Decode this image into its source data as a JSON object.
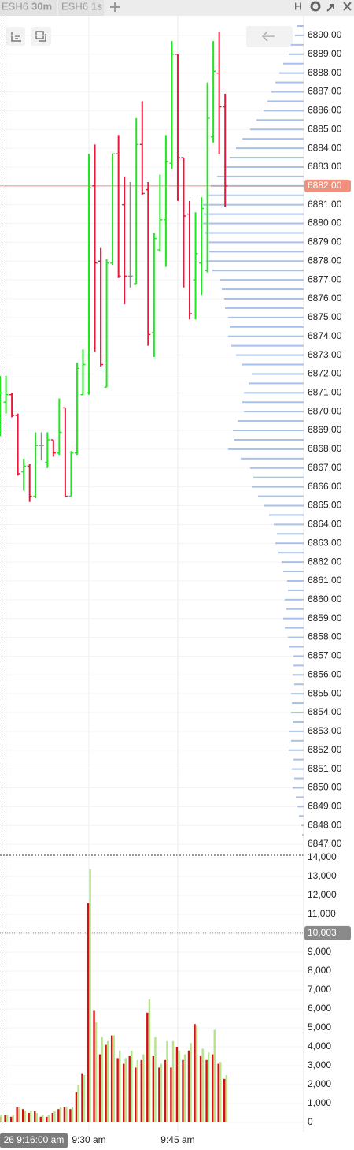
{
  "tabs": [
    {
      "symbol": "ESH6",
      "interval": "30m"
    },
    {
      "symbol": "ESH6",
      "interval": "1s"
    }
  ],
  "toolbar": {
    "hotkey": "H"
  },
  "crosshair_label": "26 9:16:00 am",
  "chart_data": [
    {
      "type": "ohlc",
      "open": [
        6869.0,
        6870.5,
        6870.9,
        6869.8,
        6866.8,
        6867.1,
        6865.5,
        6868.2,
        6867.3,
        6868.5,
        6867.8,
        6870.2,
        6865.5,
        6867.8,
        6870.9,
        6871.0,
        6882.0,
        6878.0,
        6871.3,
        6877.9,
        6883.7,
        6881.0,
        6877.2,
        6876.8,
        6884.2,
        6881.8,
        6874.2,
        6878.6,
        6880.2,
        6883.2,
        6889.0,
        6883.5,
        6880.5,
        6877.0,
        6877.9,
        6877.5,
        6884.6,
        6888.0,
        6886.2
      ],
      "high": [
        6871.9,
        6871.9,
        6871.0,
        6869.9,
        6867.5,
        6867.2,
        6868.9,
        6868.9,
        6868.9,
        6868.5,
        6870.7,
        6870.2,
        6867.9,
        6872.6,
        6873.3,
        6883.7,
        6884.2,
        6878.7,
        6878.1,
        6883.7,
        6884.7,
        6882.5,
        6882.2,
        6885.6,
        6886.5,
        6882.2,
        6879.5,
        6882.6,
        6884.7,
        6889.7,
        6889.0,
        6883.5,
        6881.2,
        6880.6,
        6881.4,
        6887.5,
        6889.7,
        6890.2,
        6886.9
      ],
      "low": [
        6868.7,
        6869.9,
        6869.7,
        6866.6,
        6865.8,
        6865.2,
        6865.4,
        6867.4,
        6867.0,
        6867.6,
        6867.7,
        6865.5,
        6865.5,
        6867.7,
        6870.9,
        6870.9,
        6873.2,
        6872.4,
        6871.3,
        6877.8,
        6877.1,
        6875.7,
        6876.6,
        6876.8,
        6881.5,
        6873.5,
        6872.9,
        6878.5,
        6877.7,
        6882.9,
        6881.2,
        6876.6,
        6874.9,
        6874.9,
        6876.2,
        6877.4,
        6884.3,
        6883.7,
        6880.9
      ],
      "close": [
        6871.0,
        6870.9,
        6869.8,
        6866.7,
        6867.1,
        6865.5,
        6868.2,
        6868.2,
        6868.5,
        6867.8,
        6868.9,
        6865.5,
        6867.8,
        6872.3,
        6872.5,
        6881.9,
        6877.9,
        6872.5,
        6877.9,
        6883.7,
        6877.2,
        6877.2,
        6877.2,
        6884.2,
        6881.6,
        6874.1,
        6879.2,
        6880.2,
        6883.3,
        6889.0,
        6883.5,
        6880.4,
        6875.2,
        6878.4,
        6880.8,
        6885.6,
        6888.1,
        6886.2,
        6882.0
      ],
      "up_color": "#22e622",
      "down_color": "#e8183c",
      "flat_color": "#8c8c8c",
      "ylim": [
        6846.5,
        6890.96
      ],
      "yticks": [
        {
          "value": 6847,
          "label": "6847.00"
        },
        {
          "value": 6848,
          "label": "6848.00"
        },
        {
          "value": 6849,
          "label": "6849.00"
        },
        {
          "value": 6850,
          "label": "6850.00"
        },
        {
          "value": 6851,
          "label": "6851.00"
        },
        {
          "value": 6852,
          "label": "6852.00"
        },
        {
          "value": 6853,
          "label": "6853.00"
        },
        {
          "value": 6854,
          "label": "6854.00"
        },
        {
          "value": 6855,
          "label": "6855.00"
        },
        {
          "value": 6856,
          "label": "6856.00"
        },
        {
          "value": 6857,
          "label": "6857.00"
        },
        {
          "value": 6858,
          "label": "6858.00"
        },
        {
          "value": 6859,
          "label": "6859.00"
        },
        {
          "value": 6860,
          "label": "6860.00"
        },
        {
          "value": 6861,
          "label": "6861.00"
        },
        {
          "value": 6862,
          "label": "6862.00"
        },
        {
          "value": 6863,
          "label": "6863.00"
        },
        {
          "value": 6864,
          "label": "6864.00"
        },
        {
          "value": 6865,
          "label": "6865.00"
        },
        {
          "value": 6866,
          "label": "6866.00"
        },
        {
          "value": 6867,
          "label": "6867.00"
        },
        {
          "value": 6868,
          "label": "6868.00"
        },
        {
          "value": 6869,
          "label": "6869.00"
        },
        {
          "value": 6870,
          "label": "6870.00"
        },
        {
          "value": 6871,
          "label": "6871.00"
        },
        {
          "value": 6872,
          "label": "6872.00"
        },
        {
          "value": 6873,
          "label": "6873.00"
        },
        {
          "value": 6874,
          "label": "6874.00"
        },
        {
          "value": 6875,
          "label": "6875.00"
        },
        {
          "value": 6876,
          "label": "6876.00"
        },
        {
          "value": 6877,
          "label": "6877.00"
        },
        {
          "value": 6878,
          "label": "6878.00"
        },
        {
          "value": 6879,
          "label": "6879.00"
        },
        {
          "value": 6880,
          "label": "6880.00"
        },
        {
          "value": 6881,
          "label": "6881.00"
        },
        {
          "value": 6882,
          "label": "6882.00"
        },
        {
          "value": 6883,
          "label": "6883.00"
        },
        {
          "value": 6884,
          "label": "6884.00"
        },
        {
          "value": 6885,
          "label": "6885.00"
        },
        {
          "value": 6886,
          "label": "6886.00"
        },
        {
          "value": 6887,
          "label": "6887.00"
        },
        {
          "value": 6888,
          "label": "6888.00"
        },
        {
          "value": 6889,
          "label": "6889.00"
        },
        {
          "value": 6890,
          "label": "6890.00"
        }
      ],
      "current_price": {
        "value": 6882,
        "label": "6882.00"
      },
      "current_color": "#f0907c",
      "profile": {
        "color": "#a9c1e8",
        "prices": [
          6847.5,
          6848,
          6848.5,
          6849,
          6849.5,
          6850,
          6850.5,
          6851,
          6851.5,
          6852,
          6852.5,
          6853,
          6853.5,
          6854,
          6854.5,
          6855,
          6855.5,
          6856,
          6856.5,
          6857,
          6857.5,
          6858,
          6858.5,
          6859,
          6859.5,
          6860,
          6860.5,
          6861,
          6861.5,
          6862,
          6862.5,
          6863,
          6863.5,
          6864,
          6864.5,
          6865,
          6865.5,
          6866,
          6866.5,
          6867,
          6867.5,
          6868,
          6868.5,
          6869,
          6869.5,
          6870,
          6870.5,
          6871,
          6871.5,
          6872,
          6872.5,
          6873,
          6873.5,
          6874,
          6874.5,
          6875,
          6875.5,
          6876,
          6876.5,
          6877,
          6877.5,
          6878,
          6878.5,
          6879,
          6879.5,
          6880,
          6880.5,
          6881,
          6881.5,
          6882,
          6882.5,
          6883,
          6883.5,
          6884,
          6884.5,
          6885,
          6885.5,
          6886,
          6886.5,
          6887,
          6887.5,
          6888,
          6888.5,
          6889,
          6889.5,
          6890,
          6890.5
        ],
        "values": [
          2,
          3,
          6,
          8,
          10,
          14,
          12,
          15,
          13,
          19,
          16,
          18,
          14,
          16,
          15,
          16,
          12,
          14,
          13,
          13,
          18,
          20,
          24,
          26,
          22,
          24,
          20,
          21,
          26,
          28,
          32,
          36,
          34,
          38,
          44,
          50,
          58,
          66,
          64,
          68,
          80,
          96,
          88,
          90,
          84,
          76,
          78,
          76,
          70,
          66,
          78,
          86,
          92,
          96,
          94,
          96,
          100,
          101,
          104,
          106,
          116,
          124,
          120,
          121,
          126,
          128,
          127,
          128,
          122,
          118,
          110,
          101,
          94,
          86,
          78,
          68,
          60,
          51,
          46,
          41,
          36,
          31,
          26,
          19,
          16,
          11,
          8
        ]
      }
    },
    {
      "type": "bar",
      "categories": [
        null,
        null,
        null,
        null,
        null,
        null,
        null,
        null,
        null,
        null,
        null,
        null,
        null,
        null,
        null,
        "9:30 am",
        null,
        null,
        null,
        null,
        null,
        null,
        null,
        null,
        null,
        null,
        null,
        null,
        null,
        null,
        "9:45 am",
        null,
        null,
        null,
        null,
        null,
        null,
        null,
        null
      ],
      "series": [
        {
          "color": "#d90f0f",
          "values": [
            300,
            400,
            300,
            800,
            700,
            500,
            600,
            300,
            300,
            500,
            700,
            800,
            700,
            1600,
            2600,
            11600,
            5900,
            3600,
            4100,
            4600,
            3400,
            3100,
            3500,
            2900,
            3300,
            5800,
            3500,
            2900,
            3300,
            2900,
            4000,
            3300,
            3800,
            5200,
            3500,
            3300,
            3600,
            3100,
            2300
          ]
        },
        {
          "color": "#b7e38c",
          "values": [
            400,
            400,
            400,
            800,
            600,
            600,
            500,
            400,
            400,
            600,
            800,
            800,
            800,
            2000,
            2500,
            13400,
            5300,
            4500,
            4300,
            4600,
            3800,
            3400,
            3800,
            3300,
            3600,
            6500,
            4500,
            3100,
            4300,
            4300,
            3800,
            3600,
            4200,
            5100,
            3900,
            3700,
            4900,
            3200,
            2500
          ]
        }
      ],
      "ylim": [
        -500,
        14000
      ],
      "yticks": [
        0,
        {
          "value": 1000,
          "label": "1,000"
        },
        {
          "value": 2000,
          "label": "2,000"
        },
        {
          "value": 3000,
          "label": "3,000"
        },
        {
          "value": 4000,
          "label": "4,000"
        },
        {
          "value": 5000,
          "label": "5,000"
        },
        {
          "value": 6000,
          "label": "6,000"
        },
        {
          "value": 7000,
          "label": "7,000"
        },
        {
          "value": 8000,
          "label": "8,000"
        },
        {
          "value": 9000,
          "label": "9,000"
        },
        {
          "value": 10000,
          "label": "10,000"
        },
        {
          "value": 11000,
          "label": "11,000"
        },
        {
          "value": 12000,
          "label": "12,000"
        },
        {
          "value": 13000,
          "label": "13,000"
        },
        {
          "value": 14000,
          "label": "14,000"
        }
      ],
      "crosshair": {
        "value": 10003,
        "label": "10,003"
      },
      "crosshair_color": "#8a8a8a"
    }
  ]
}
